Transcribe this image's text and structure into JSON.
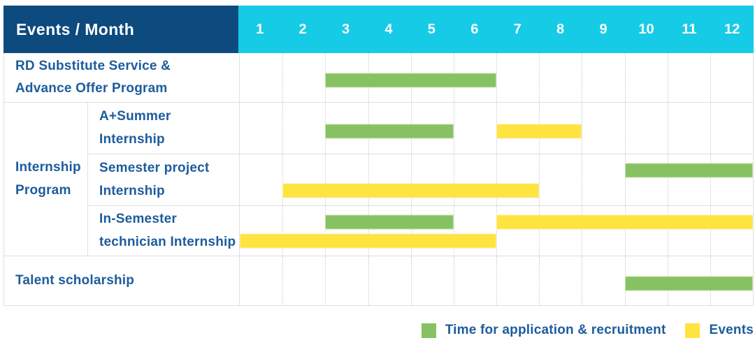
{
  "header": {
    "title": "Events / Month",
    "months": [
      "1",
      "2",
      "3",
      "4",
      "5",
      "6",
      "7",
      "8",
      "9",
      "10",
      "11",
      "12"
    ]
  },
  "grid": {
    "group_label": "Internship\nProgram"
  },
  "rows": [
    {
      "id": "rd-substitute-service",
      "label": "RD Substitute Service &\nAdvance Offer Program",
      "lines": [
        [
          {
            "color": "green",
            "start": 3,
            "end": 6
          }
        ]
      ]
    },
    {
      "id": "a-plus-summer-internship",
      "label": "A+Summer\nInternship",
      "lines": [
        [
          {
            "color": "green",
            "start": 3,
            "end": 5
          },
          {
            "color": "yellow",
            "start": 7,
            "end": 8
          }
        ]
      ]
    },
    {
      "id": "semester-project-internship",
      "label": "Semester project\nInternship",
      "lines": [
        [
          {
            "color": "green",
            "start": 10,
            "end": 12
          }
        ],
        [
          {
            "color": "yellow",
            "start": 2,
            "end": 7
          }
        ]
      ]
    },
    {
      "id": "in-semester-technician-internship",
      "label": "In-Semester\ntechnician Internship",
      "lines": [
        [
          {
            "color": "green",
            "start": 3,
            "end": 5
          },
          {
            "color": "yellow",
            "start": 7,
            "end": 12
          }
        ],
        [
          {
            "color": "yellow",
            "start": 1,
            "end": 6
          }
        ]
      ]
    },
    {
      "id": "talent-scholarship",
      "label": "Talent scholarship",
      "lines": [
        [
          {
            "color": "green",
            "start": 10,
            "end": 12
          }
        ]
      ]
    }
  ],
  "legend": {
    "items": [
      {
        "label": "Time for application & recruitment",
        "color_key": "green",
        "color": "#86C162"
      },
      {
        "label": "Events",
        "color_key": "yellow",
        "color": "#FFE33F"
      }
    ]
  },
  "colors": {
    "header_bg": "#0D4A7E",
    "months_bg": "#16CBE6",
    "label_text": "#1D5C9C",
    "bar_green": "#86C162",
    "bar_green_border": "#C8E2B0",
    "bar_yellow": "#FFE33F",
    "bar_yellow_border": "#F9EDA9",
    "grid_dotted": "#CBCBCB",
    "grid_solid": "#E0E0E0"
  },
  "chart_data": {
    "type": "table",
    "subtype": "gantt",
    "title": "Events / Month",
    "x": {
      "label": "Month",
      "ticks": [
        "1",
        "2",
        "3",
        "4",
        "5",
        "6",
        "7",
        "8",
        "9",
        "10",
        "11",
        "12"
      ],
      "range": [
        1,
        12
      ]
    },
    "legend_position": "bottom-right",
    "grid": true,
    "series_legend": [
      {
        "name": "Time for application & recruitment",
        "color": "#86C162"
      },
      {
        "name": "Events",
        "color": "#FFE33F"
      }
    ],
    "rows": [
      {
        "category": "RD Substitute Service & Advance Offer Program",
        "group": null,
        "bars": [
          {
            "series": "Time for application & recruitment",
            "start_month": 3,
            "end_month": 6
          }
        ]
      },
      {
        "category": "A+Summer Internship",
        "group": "Internship Program",
        "bars": [
          {
            "series": "Time for application & recruitment",
            "start_month": 3,
            "end_month": 5
          },
          {
            "series": "Events",
            "start_month": 7,
            "end_month": 8
          }
        ]
      },
      {
        "category": "Semester project Internship",
        "group": "Internship Program",
        "bars": [
          {
            "series": "Time for application & recruitment",
            "start_month": 10,
            "end_month": 12
          },
          {
            "series": "Events",
            "start_month": 2,
            "end_month": 7
          }
        ]
      },
      {
        "category": "In-Semester technician Internship",
        "group": "Internship Program",
        "bars": [
          {
            "series": "Time for application & recruitment",
            "start_month": 3,
            "end_month": 5
          },
          {
            "series": "Events",
            "start_month": 7,
            "end_month": 12
          },
          {
            "series": "Events",
            "start_month": 1,
            "end_month": 6
          }
        ]
      },
      {
        "category": "Talent scholarship",
        "group": null,
        "bars": [
          {
            "series": "Time for application & recruitment",
            "start_month": 10,
            "end_month": 12
          }
        ]
      }
    ]
  }
}
